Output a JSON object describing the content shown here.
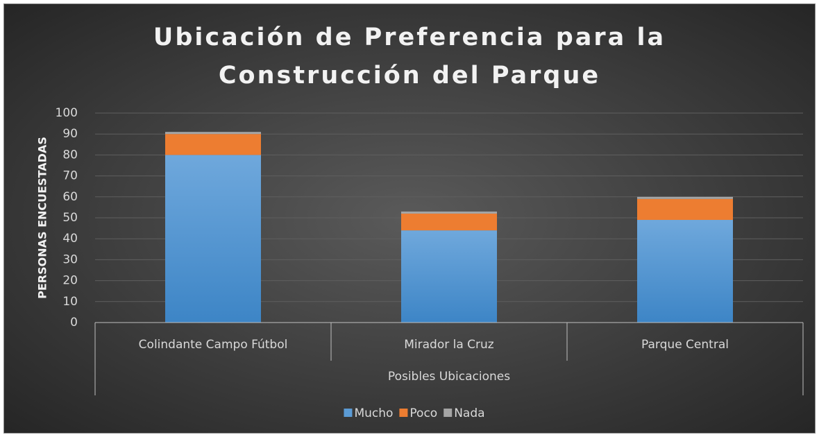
{
  "chart_data": {
    "type": "stacked_bar",
    "title": [
      "Ubicación de Preferencia para la",
      "Construcción del Parque"
    ],
    "x_label": "Posibles Ubicaciones",
    "y_label": "PERSONAS ENCUESTADAS",
    "categories": [
      "Colindante Campo Fútbol",
      "Mirador la Cruz",
      "Parque Central"
    ],
    "series": [
      {
        "name": "Mucho",
        "color": "#5b9bd5",
        "values": [
          80,
          44,
          49
        ]
      },
      {
        "name": "Poco",
        "color": "#ed7d31",
        "values": [
          10,
          8,
          10
        ]
      },
      {
        "name": "Nada",
        "color": "#a5a5a5",
        "values": [
          1,
          1,
          1
        ]
      }
    ],
    "ylim": [
      0,
      100
    ],
    "yticks": [
      0,
      10,
      20,
      30,
      40,
      50,
      60,
      70,
      80,
      90,
      100
    ],
    "grid": true,
    "legend": "bottom"
  }
}
